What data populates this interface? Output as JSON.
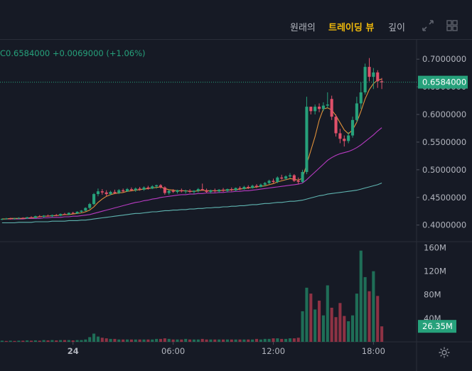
{
  "tabs": [
    {
      "label": "원래의",
      "active": false
    },
    {
      "label": "트레이딩 뷰",
      "active": true
    },
    {
      "label": "깊이",
      "active": false
    }
  ],
  "toolbar_icons": [
    "expand-icon",
    "layout-icon"
  ],
  "price_info": {
    "close": "C0.6584000",
    "change": "+0.0069000",
    "change_pct": "(+1.06%)"
  },
  "colors": {
    "background": "#161a25",
    "up": "#26a17b",
    "down": "#e0506a",
    "active_tab": "#f0b90b",
    "ma_short": "#e0913a",
    "ma_mid": "#b83bc2",
    "ma_long": "#5fb4b0"
  },
  "chart_data": {
    "type": "candlestick",
    "price_axis": {
      "ticks": [
        "0.7000000",
        "0.6500000",
        "0.6000000",
        "0.5500000",
        "0.5000000",
        "0.4500000",
        "0.4000000"
      ],
      "range": [
        0.37,
        0.735
      ],
      "current_price_label": "0.6584000",
      "current_price": 0.6584
    },
    "volume_axis": {
      "ticks": [
        "160M",
        "120M",
        "80M",
        "40M"
      ],
      "range": [
        0,
        163
      ],
      "current_volume_label": "26.35M"
    },
    "time_axis": {
      "ticks": [
        {
          "label": "24",
          "index": 17
        },
        {
          "label": "06:00",
          "index": 41
        },
        {
          "label": "12:00",
          "index": 65
        },
        {
          "label": "18:00",
          "index": 89
        }
      ]
    },
    "candles": [
      [
        0.411,
        0.412,
        0.409,
        0.411
      ],
      [
        0.411,
        0.413,
        0.41,
        0.412
      ],
      [
        0.412,
        0.413,
        0.41,
        0.411
      ],
      [
        0.411,
        0.413,
        0.41,
        0.412
      ],
      [
        0.412,
        0.414,
        0.411,
        0.413
      ],
      [
        0.413,
        0.414,
        0.411,
        0.412
      ],
      [
        0.412,
        0.415,
        0.411,
        0.414
      ],
      [
        0.414,
        0.416,
        0.412,
        0.413
      ],
      [
        0.413,
        0.417,
        0.412,
        0.416
      ],
      [
        0.416,
        0.418,
        0.414,
        0.415
      ],
      [
        0.415,
        0.418,
        0.413,
        0.417
      ],
      [
        0.417,
        0.419,
        0.415,
        0.416
      ],
      [
        0.416,
        0.419,
        0.414,
        0.418
      ],
      [
        0.418,
        0.42,
        0.416,
        0.417
      ],
      [
        0.417,
        0.421,
        0.416,
        0.42
      ],
      [
        0.42,
        0.422,
        0.418,
        0.419
      ],
      [
        0.419,
        0.423,
        0.418,
        0.422
      ],
      [
        0.422,
        0.424,
        0.42,
        0.421
      ],
      [
        0.421,
        0.425,
        0.42,
        0.424
      ],
      [
        0.424,
        0.427,
        0.422,
        0.426
      ],
      [
        0.426,
        0.432,
        0.425,
        0.431
      ],
      [
        0.431,
        0.44,
        0.429,
        0.438
      ],
      [
        0.438,
        0.458,
        0.436,
        0.456
      ],
      [
        0.456,
        0.466,
        0.452,
        0.461
      ],
      [
        0.461,
        0.465,
        0.455,
        0.459
      ],
      [
        0.459,
        0.463,
        0.452,
        0.456
      ],
      [
        0.456,
        0.462,
        0.454,
        0.46
      ],
      [
        0.46,
        0.464,
        0.456,
        0.458
      ],
      [
        0.458,
        0.465,
        0.456,
        0.463
      ],
      [
        0.463,
        0.466,
        0.459,
        0.461
      ],
      [
        0.461,
        0.467,
        0.46,
        0.465
      ],
      [
        0.465,
        0.468,
        0.461,
        0.463
      ],
      [
        0.463,
        0.468,
        0.46,
        0.466
      ],
      [
        0.466,
        0.469,
        0.462,
        0.464
      ],
      [
        0.464,
        0.47,
        0.462,
        0.468
      ],
      [
        0.468,
        0.471,
        0.464,
        0.466
      ],
      [
        0.466,
        0.472,
        0.465,
        0.47
      ],
      [
        0.47,
        0.473,
        0.466,
        0.472
      ],
      [
        0.472,
        0.474,
        0.466,
        0.468
      ],
      [
        0.468,
        0.47,
        0.455,
        0.458
      ],
      [
        0.458,
        0.463,
        0.455,
        0.462
      ],
      [
        0.462,
        0.465,
        0.458,
        0.46
      ],
      [
        0.46,
        0.464,
        0.457,
        0.463
      ],
      [
        0.463,
        0.466,
        0.459,
        0.461
      ],
      [
        0.461,
        0.464,
        0.457,
        0.462
      ],
      [
        0.462,
        0.465,
        0.458,
        0.46
      ],
      [
        0.46,
        0.463,
        0.456,
        0.462
      ],
      [
        0.462,
        0.467,
        0.459,
        0.465
      ],
      [
        0.465,
        0.475,
        0.462,
        0.463
      ],
      [
        0.463,
        0.466,
        0.458,
        0.46
      ],
      [
        0.46,
        0.464,
        0.457,
        0.463
      ],
      [
        0.463,
        0.466,
        0.459,
        0.461
      ],
      [
        0.461,
        0.465,
        0.458,
        0.464
      ],
      [
        0.464,
        0.467,
        0.46,
        0.462
      ],
      [
        0.462,
        0.466,
        0.459,
        0.465
      ],
      [
        0.465,
        0.468,
        0.461,
        0.463
      ],
      [
        0.463,
        0.468,
        0.461,
        0.467
      ],
      [
        0.467,
        0.47,
        0.463,
        0.465
      ],
      [
        0.465,
        0.471,
        0.464,
        0.469
      ],
      [
        0.469,
        0.472,
        0.465,
        0.467
      ],
      [
        0.467,
        0.473,
        0.466,
        0.471
      ],
      [
        0.471,
        0.474,
        0.467,
        0.469
      ],
      [
        0.469,
        0.475,
        0.468,
        0.473
      ],
      [
        0.473,
        0.478,
        0.47,
        0.476
      ],
      [
        0.476,
        0.482,
        0.474,
        0.48
      ],
      [
        0.48,
        0.484,
        0.476,
        0.478
      ],
      [
        0.478,
        0.488,
        0.476,
        0.486
      ],
      [
        0.486,
        0.491,
        0.482,
        0.484
      ],
      [
        0.484,
        0.49,
        0.481,
        0.488
      ],
      [
        0.488,
        0.494,
        0.485,
        0.49
      ],
      [
        0.49,
        0.492,
        0.478,
        0.48
      ],
      [
        0.48,
        0.486,
        0.474,
        0.478
      ],
      [
        0.478,
        0.5,
        0.476,
        0.496
      ],
      [
        0.496,
        0.632,
        0.492,
        0.614
      ],
      [
        0.614,
        0.614,
        0.6,
        0.606
      ],
      [
        0.606,
        0.618,
        0.6,
        0.614
      ],
      [
        0.614,
        0.62,
        0.604,
        0.61
      ],
      [
        0.61,
        0.622,
        0.606,
        0.616
      ],
      [
        0.616,
        0.64,
        0.612,
        0.618
      ],
      [
        0.628,
        0.634,
        0.59,
        0.596
      ],
      [
        0.596,
        0.6,
        0.56,
        0.566
      ],
      [
        0.566,
        0.574,
        0.548,
        0.556
      ],
      [
        0.556,
        0.562,
        0.542,
        0.552
      ],
      [
        0.552,
        0.568,
        0.548,
        0.562
      ],
      [
        0.562,
        0.596,
        0.558,
        0.59
      ],
      [
        0.59,
        0.632,
        0.586,
        0.62
      ],
      [
        0.62,
        0.658,
        0.61,
        0.64
      ],
      [
        0.64,
        0.692,
        0.636,
        0.686
      ],
      [
        0.686,
        0.702,
        0.66,
        0.668
      ],
      [
        0.668,
        0.684,
        0.646,
        0.676
      ],
      [
        0.676,
        0.68,
        0.648,
        0.66
      ],
      [
        0.66,
        0.666,
        0.646,
        0.658
      ]
    ],
    "volumes": [
      2,
      1.5,
      2,
      1.5,
      2,
      2,
      2.5,
      2,
      2.5,
      2,
      3,
      2.5,
      3,
      2.5,
      3,
      3,
      3,
      2.5,
      3,
      3,
      4,
      8,
      14,
      9,
      7,
      6,
      5,
      5,
      4,
      4,
      4,
      4,
      4,
      4,
      4,
      4,
      4,
      5,
      5,
      6,
      5,
      4,
      4,
      4,
      5,
      4,
      4,
      4,
      5,
      4,
      4,
      4,
      4,
      4,
      4,
      4,
      4,
      4,
      4,
      4,
      4,
      5,
      4,
      5,
      5,
      6,
      6,
      5,
      5,
      6,
      6,
      7,
      52,
      92,
      82,
      55,
      70,
      45,
      96,
      58,
      42,
      66,
      44,
      35,
      45,
      82,
      155,
      110,
      86,
      120,
      78,
      26.35
    ],
    "volume_up": [
      1,
      0,
      1,
      0,
      1,
      0,
      1,
      0,
      1,
      0,
      1,
      0,
      1,
      0,
      1,
      0,
      1,
      0,
      1,
      1,
      1,
      1,
      1,
      1,
      0,
      0,
      1,
      0,
      1,
      0,
      1,
      0,
      1,
      0,
      1,
      0,
      1,
      1,
      0,
      0,
      1,
      0,
      1,
      0,
      1,
      0,
      1,
      1,
      0,
      0,
      1,
      0,
      1,
      0,
      1,
      0,
      1,
      0,
      1,
      0,
      1,
      0,
      1,
      1,
      1,
      0,
      1,
      0,
      1,
      1,
      0,
      0,
      1,
      1,
      0,
      1,
      0,
      1,
      1,
      0,
      0,
      0,
      0,
      1,
      1,
      1,
      1,
      1,
      0,
      1,
      0,
      0
    ],
    "ma_short": [
      0.411,
      0.411,
      0.412,
      0.412,
      0.412,
      0.412,
      0.413,
      0.413,
      0.414,
      0.415,
      0.416,
      0.416,
      0.417,
      0.417,
      0.418,
      0.419,
      0.419,
      0.42,
      0.421,
      0.422,
      0.424,
      0.427,
      0.433,
      0.441,
      0.447,
      0.452,
      0.455,
      0.457,
      0.458,
      0.459,
      0.461,
      0.462,
      0.463,
      0.464,
      0.465,
      0.466,
      0.467,
      0.468,
      0.469,
      0.466,
      0.464,
      0.463,
      0.462,
      0.462,
      0.462,
      0.461,
      0.461,
      0.462,
      0.463,
      0.462,
      0.462,
      0.462,
      0.462,
      0.463,
      0.463,
      0.464,
      0.464,
      0.465,
      0.466,
      0.467,
      0.468,
      0.469,
      0.47,
      0.471,
      0.473,
      0.475,
      0.478,
      0.48,
      0.482,
      0.484,
      0.483,
      0.481,
      0.485,
      0.51,
      0.535,
      0.56,
      0.59,
      0.61,
      0.612,
      0.608,
      0.598,
      0.585,
      0.572,
      0.565,
      0.572,
      0.586,
      0.606,
      0.628,
      0.645,
      0.656,
      0.662,
      0.664
    ],
    "ma_mid": [
      0.411,
      0.411,
      0.411,
      0.411,
      0.411,
      0.411,
      0.412,
      0.412,
      0.412,
      0.412,
      0.413,
      0.413,
      0.414,
      0.414,
      0.414,
      0.415,
      0.415,
      0.416,
      0.416,
      0.417,
      0.418,
      0.419,
      0.421,
      0.423,
      0.425,
      0.427,
      0.429,
      0.431,
      0.433,
      0.435,
      0.437,
      0.439,
      0.441,
      0.442,
      0.444,
      0.445,
      0.447,
      0.448,
      0.45,
      0.451,
      0.452,
      0.453,
      0.454,
      0.455,
      0.455,
      0.456,
      0.456,
      0.457,
      0.457,
      0.458,
      0.458,
      0.458,
      0.459,
      0.459,
      0.46,
      0.46,
      0.461,
      0.461,
      0.462,
      0.462,
      0.463,
      0.464,
      0.465,
      0.466,
      0.467,
      0.468,
      0.469,
      0.47,
      0.471,
      0.472,
      0.473,
      0.474,
      0.476,
      0.482,
      0.489,
      0.496,
      0.503,
      0.51,
      0.517,
      0.522,
      0.526,
      0.529,
      0.531,
      0.533,
      0.536,
      0.54,
      0.545,
      0.551,
      0.557,
      0.563,
      0.57,
      0.576
    ],
    "ma_long": [
      0.404,
      0.404,
      0.404,
      0.404,
      0.405,
      0.405,
      0.405,
      0.405,
      0.406,
      0.406,
      0.406,
      0.406,
      0.407,
      0.407,
      0.407,
      0.407,
      0.408,
      0.408,
      0.408,
      0.409,
      0.409,
      0.41,
      0.411,
      0.412,
      0.413,
      0.414,
      0.415,
      0.416,
      0.417,
      0.418,
      0.419,
      0.42,
      0.421,
      0.421,
      0.422,
      0.423,
      0.424,
      0.424,
      0.425,
      0.426,
      0.426,
      0.427,
      0.427,
      0.428,
      0.428,
      0.429,
      0.429,
      0.43,
      0.43,
      0.431,
      0.431,
      0.432,
      0.432,
      0.433,
      0.433,
      0.434,
      0.434,
      0.435,
      0.435,
      0.436,
      0.437,
      0.437,
      0.438,
      0.439,
      0.439,
      0.44,
      0.441,
      0.441,
      0.442,
      0.443,
      0.443,
      0.444,
      0.445,
      0.447,
      0.449,
      0.451,
      0.453,
      0.454,
      0.456,
      0.457,
      0.458,
      0.459,
      0.46,
      0.461,
      0.462,
      0.463,
      0.465,
      0.467,
      0.469,
      0.471,
      0.473,
      0.476
    ]
  }
}
